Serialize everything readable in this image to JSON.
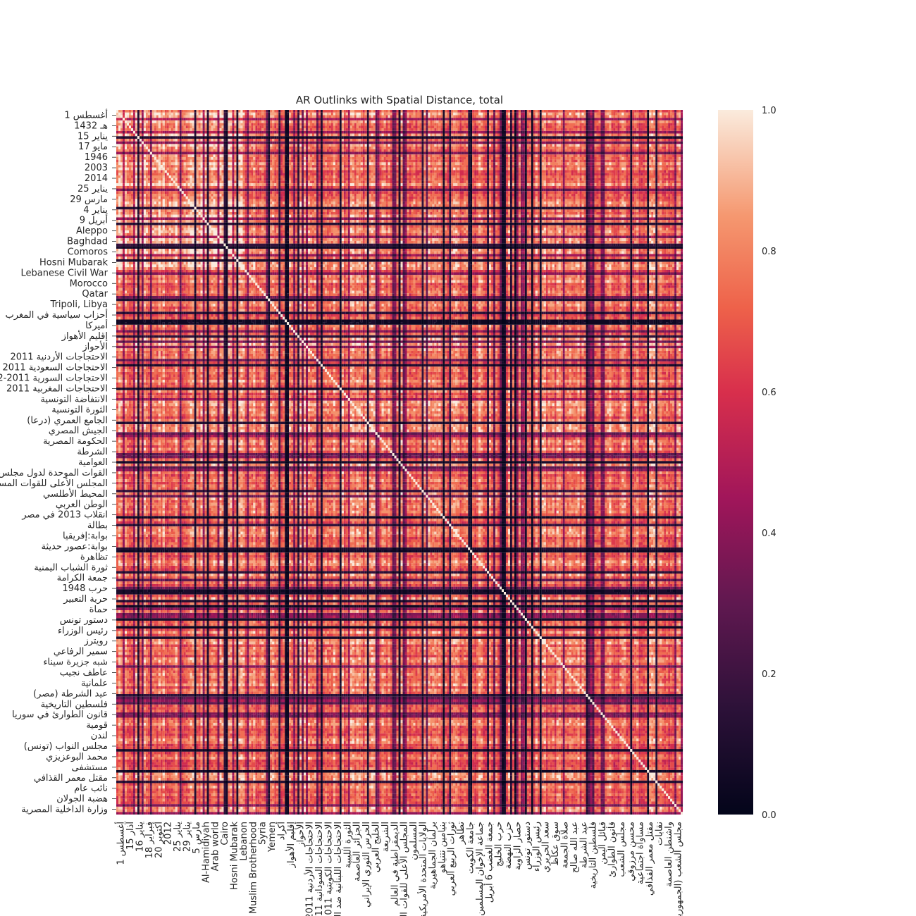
{
  "chart_data": {
    "type": "heatmap",
    "title": "AR Outlinks with Spatial Distance, total",
    "xlabel": "",
    "ylabel": "",
    "n_items": 269,
    "value_range": [
      0.0,
      1.0
    ],
    "colormap": "rocket",
    "y_tick_labels": [
      "1 أغسطس",
      "1432 هـ",
      "15 يناير",
      "17 مايو",
      "1946",
      "2003",
      "2014",
      "25 يناير",
      "29 مارس",
      "4 يناير",
      "9 أبريل",
      "Aleppo",
      "Baghdad",
      "Comoros",
      "Hosni Mubarak",
      "Lebanese Civil War",
      "Morocco",
      "Qatar",
      "Tripoli, Libya",
      "أحزاب سياسية في المغرب",
      "أميركا",
      "إقليم الأهواز",
      "الأحواز",
      "الاحتجاجات الأردنية 2011",
      "الاحتجاجات السعودية 2011",
      "الاحتجاجات السورية 2011-2012",
      "الاحتجاجات المغربية 2011",
      "الانتفاضة التونسية",
      "الثورة التونسية",
      "الجامع العمري (درعا)",
      "الجيش المصري",
      "الحكومة المصرية",
      "الشرطة",
      "العوامية",
      "القوات الموحدة لدول مجلس التعاون",
      "المجلس الأعلى للقوات المسلحة",
      "المحيط الأطلسي",
      "الوطن العربي",
      "انقلاب 2013 في مصر",
      "بطالة",
      "بوابة:إفريقيا",
      "بوابة:عصور حديثة",
      "تظاهرة",
      "ثورة الشباب اليمنية",
      "جمعة الكرامة",
      "حرب 1948",
      "حرية التعبير",
      "حماة",
      "دستور تونس",
      "رئيس الوزراء",
      "رويترز",
      "سمير الرفاعي",
      "شبه جزيرة سيناء",
      "عاطف نجيب",
      "علمانية",
      "عيد الشرطة (مصر)",
      "فلسطين التاريخية",
      "قانون الطوارئ في سوريا",
      "قومية",
      "لندن",
      "مجلس النواب (تونس)",
      "محمد البوعزيزي",
      "مستشفى",
      "مقتل معمر القذافي",
      "نائب عام",
      "هضبة الجولان",
      "وزارة الداخلية المصرية"
    ],
    "x_tick_labels": [
      "1 أغسطس",
      "15 آذار",
      "16 يناير",
      "18 فبراير",
      "20 أكتوبر",
      "2012",
      "25 يناير",
      "29 يناير",
      "5 مارس",
      "Al-Hamidiyah",
      "Arab world",
      "Cairo",
      "Hosni Mubarak",
      "Lebanon",
      "Muslim Brotherhood",
      "Syria",
      "Yemen",
      "أكراد",
      "إقليم الأهواز",
      "الأحواز",
      "الاحتجاجات الأردنية 2011–2012",
      "الاحتجاجات السودانية 2011",
      "الاحتجاجات الكويتية 2011",
      "الاحتجاجات اللبنانية ضد الطائفية",
      "الثورة الليبية",
      "الجزائر العاصمة",
      "الحرس الثوري الإيراني",
      "الخليج العربي",
      "الشريعة",
      "الديمقراطية في العالم",
      "المجلس الأعلى للقوات المسلحة",
      "المسلمون",
      "الولايات المتحدة الأمريكية",
      "برلمان الجماهيرية",
      "بنيامين نتنياهو",
      "ثورات الربيع العربي",
      "تطاهر",
      "جامعة الكويت",
      "جماعة الإخوان المسلمين",
      "جمعة الغضب 6 أبريل",
      "حرب الخليج",
      "حزب النهضة",
      "حصار الزاوية",
      "دستور تونس",
      "رئيس الوزراء",
      "سعد الحريري",
      "سوق عكاظ",
      "صلاة الجمعة",
      "عبد الله صالح",
      "عيد الشرطة",
      "فلسطين التاريخية",
      "قبائل اليمن",
      "قانون الطوارئ",
      "مجلس الشعب",
      "محسن مرزوقي",
      "مساواة اجتماعية",
      "مقتل معمر القذافي",
      "نقابات",
      "واشنطن العاصمة",
      "مجلس الشعب (الجمهورية المصرية)"
    ],
    "colorbar_ticks": [
      "0.0",
      "0.2",
      "0.4",
      "0.6",
      "0.8",
      "1.0"
    ]
  }
}
